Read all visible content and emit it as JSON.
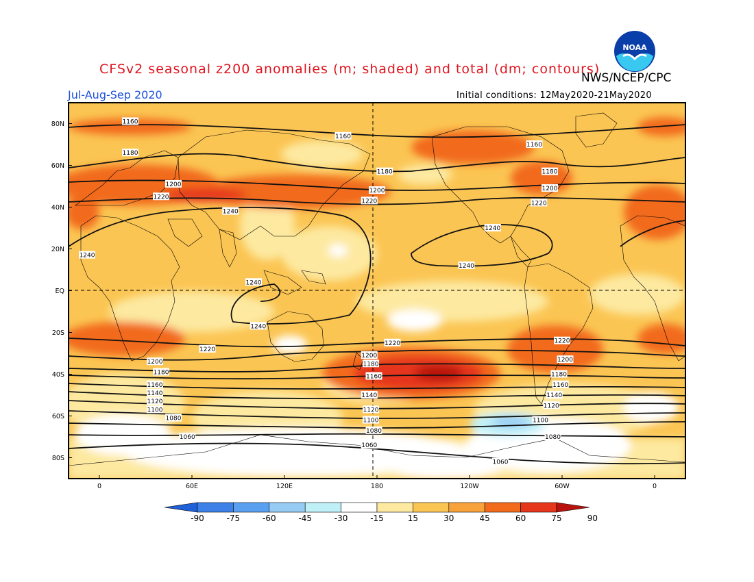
{
  "title": "CFSv2 seasonal z200 anomalies (m; shaded) and total (dm; contours)",
  "agency": "NWS/NCEP/CPC",
  "logo_text": "NOAA",
  "season": "Jul-Aug-Sep 2020",
  "initial_conditions": "Initial conditions: 12May2020-21May2020",
  "lat_labels": [
    "80N",
    "60N",
    "40N",
    "20N",
    "EQ",
    "20S",
    "40S",
    "60S",
    "80S"
  ],
  "lon_labels": [
    "0",
    "60E",
    "120E",
    "180",
    "120W",
    "60W",
    "0"
  ],
  "colorbar": {
    "labels": [
      "-90",
      "-75",
      "-60",
      "-45",
      "-30",
      "-15",
      "15",
      "30",
      "45",
      "60",
      "75",
      "90"
    ],
    "colors": [
      "#2060d8",
      "#3c80e8",
      "#5aa0f0",
      "#96ccf4",
      "#bff0f8",
      "#ffffff",
      "#fde9a0",
      "#fbc553",
      "#f7a23a",
      "#f26a1c",
      "#e5351a",
      "#b8120f"
    ]
  },
  "contour_labels": [
    {
      "text": "1160",
      "lat": 81,
      "lon": 20
    },
    {
      "text": "1160",
      "lat": 74,
      "lon": 158
    },
    {
      "text": "1160",
      "lat": 70,
      "lon": 282
    },
    {
      "text": "1180",
      "lat": 66,
      "lon": 20
    },
    {
      "text": "1180",
      "lat": 57,
      "lon": 185
    },
    {
      "text": "1180",
      "lat": 57,
      "lon": 292
    },
    {
      "text": "1200",
      "lat": 51,
      "lon": 48
    },
    {
      "text": "1200",
      "lat": 48,
      "lon": 180
    },
    {
      "text": "1200",
      "lat": 49,
      "lon": 292
    },
    {
      "text": "1220",
      "lat": 45,
      "lon": 40
    },
    {
      "text": "1220",
      "lat": 43,
      "lon": 175
    },
    {
      "text": "1220",
      "lat": 42,
      "lon": 285
    },
    {
      "text": "1240",
      "lat": 38,
      "lon": 85
    },
    {
      "text": "1240",
      "lat": 30,
      "lon": 255
    },
    {
      "text": "1240",
      "lat": 17,
      "lon": -8
    },
    {
      "text": "1240",
      "lat": 4,
      "lon": 100
    },
    {
      "text": "1240",
      "lat": 12,
      "lon": 238
    },
    {
      "text": "1240",
      "lat": -17,
      "lon": 103
    },
    {
      "text": "1220",
      "lat": -28,
      "lon": 70
    },
    {
      "text": "1220",
      "lat": -25,
      "lon": 190
    },
    {
      "text": "1220",
      "lat": -24,
      "lon": 300
    },
    {
      "text": "1200",
      "lat": -34,
      "lon": 36
    },
    {
      "text": "1200",
      "lat": -31,
      "lon": 175
    },
    {
      "text": "1200",
      "lat": -33,
      "lon": 302
    },
    {
      "text": "1180",
      "lat": -39,
      "lon": 40
    },
    {
      "text": "1180",
      "lat": -35,
      "lon": 176
    },
    {
      "text": "1180",
      "lat": -40,
      "lon": 298
    },
    {
      "text": "1160",
      "lat": -41,
      "lon": 178
    },
    {
      "text": "1160",
      "lat": -45,
      "lon": 36
    },
    {
      "text": "1160",
      "lat": -45,
      "lon": 299
    },
    {
      "text": "1140",
      "lat": -49,
      "lon": 36
    },
    {
      "text": "1140",
      "lat": -50,
      "lon": 175
    },
    {
      "text": "1140",
      "lat": -50,
      "lon": 295
    },
    {
      "text": "1120",
      "lat": -53,
      "lon": 36
    },
    {
      "text": "1120",
      "lat": -57,
      "lon": 176
    },
    {
      "text": "1120",
      "lat": -55,
      "lon": 293
    },
    {
      "text": "1100",
      "lat": -57,
      "lon": 36
    },
    {
      "text": "1100",
      "lat": -62,
      "lon": 176
    },
    {
      "text": "1100",
      "lat": -62,
      "lon": 286
    },
    {
      "text": "1080",
      "lat": -61,
      "lon": 48
    },
    {
      "text": "1080",
      "lat": -67,
      "lon": 178
    },
    {
      "text": "1080",
      "lat": -70,
      "lon": 294
    },
    {
      "text": "1060",
      "lat": -70,
      "lon": 57
    },
    {
      "text": "1060",
      "lat": -74,
      "lon": 175
    },
    {
      "text": "1060",
      "lat": -82,
      "lon": 260
    }
  ]
}
